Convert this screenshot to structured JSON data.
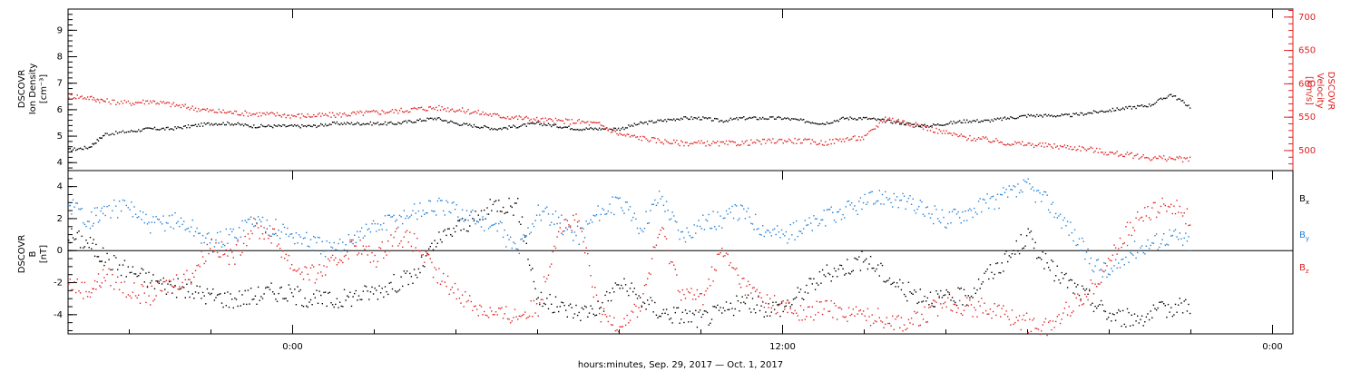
{
  "x_axis": {
    "label": "hours:minutes, Sep. 29, 2017 — Oct.  1, 2017",
    "ticks": [
      {
        "hour": 0,
        "label": "0:00"
      },
      {
        "hour": 12,
        "label": "12:00"
      },
      {
        "hour": 24,
        "label": "0:00"
      }
    ],
    "range_hours": [
      -5.5,
      24.5
    ]
  },
  "colors": {
    "black": "#000000",
    "red": "#e02020",
    "blue": "#1f7fd6"
  },
  "chart_data": [
    {
      "type": "scatter",
      "panel": "top",
      "left_axis": {
        "label_lines": [
          "DSCOVR",
          "Ion Density",
          "[cm⁻³]"
        ],
        "ylim": [
          3.7,
          9.8
        ],
        "ticks": [
          4,
          5,
          6,
          7,
          8,
          9
        ]
      },
      "right_axis": {
        "label_lines": [
          "DSCOVR",
          "Velocity",
          "[km/s]"
        ],
        "ylim": [
          470,
          712
        ],
        "ticks": [
          500,
          550,
          600,
          650,
          700
        ]
      },
      "series": [
        {
          "color": "black",
          "axis": "left",
          "x_hours": [
            -5.5,
            -5.0,
            -4.6,
            -4.0,
            -3.5,
            -3.0,
            -2.5,
            -2.0,
            -1.5,
            -1.0,
            -0.5,
            0.0,
            0.5,
            1.0,
            1.5,
            2.0,
            2.5,
            3.0,
            3.5,
            4.0,
            4.5,
            5.0,
            5.5,
            6.0,
            6.5,
            7.0,
            7.5,
            8.0,
            8.5,
            9.0,
            9.5,
            10.0,
            10.5,
            11.0,
            11.5,
            12.0,
            12.5,
            13.0,
            13.5,
            14.0,
            14.5,
            15.0,
            15.5,
            16.0,
            16.5,
            17.0,
            17.5,
            18.0,
            18.5,
            19.0,
            19.5,
            20.0,
            20.5,
            21.0,
            21.5,
            22.0
          ],
          "y": [
            4.5,
            4.6,
            5.1,
            5.2,
            5.3,
            5.3,
            5.4,
            5.5,
            5.5,
            5.4,
            5.4,
            5.4,
            5.4,
            5.5,
            5.5,
            5.5,
            5.5,
            5.6,
            5.7,
            5.5,
            5.4,
            5.3,
            5.4,
            5.5,
            5.4,
            5.3,
            5.3,
            5.3,
            5.5,
            5.6,
            5.7,
            5.7,
            5.6,
            5.7,
            5.7,
            5.7,
            5.6,
            5.5,
            5.7,
            5.7,
            5.6,
            5.5,
            5.4,
            5.5,
            5.6,
            5.6,
            5.7,
            5.8,
            5.8,
            5.8,
            5.9,
            6.0,
            6.1,
            6.2,
            6.6,
            6.1
          ]
        },
        {
          "color": "red",
          "axis": "right",
          "x_hours": [
            -5.5,
            -5.0,
            -4.6,
            -4.0,
            -3.5,
            -3.0,
            -2.5,
            -2.0,
            -1.5,
            -1.0,
            -0.5,
            0.0,
            0.5,
            1.0,
            1.5,
            2.0,
            2.5,
            3.0,
            3.5,
            4.0,
            4.5,
            5.0,
            5.5,
            6.0,
            6.5,
            7.0,
            7.5,
            8.0,
            8.5,
            9.0,
            9.5,
            10.0,
            10.5,
            11.0,
            11.5,
            12.0,
            12.5,
            13.0,
            13.5,
            14.0,
            14.5,
            15.0,
            15.5,
            16.0,
            16.5,
            17.0,
            17.5,
            18.0,
            18.5,
            19.0,
            19.5,
            20.0,
            20.5,
            21.0,
            21.5,
            22.0
          ],
          "y": [
            583,
            580,
            575,
            572,
            575,
            570,
            565,
            560,
            558,
            556,
            555,
            553,
            553,
            554,
            556,
            558,
            560,
            563,
            565,
            562,
            558,
            553,
            550,
            547,
            545,
            544,
            540,
            525,
            520,
            515,
            512,
            512,
            511,
            512,
            514,
            516,
            515,
            512,
            518,
            520,
            550,
            543,
            535,
            527,
            520,
            517,
            512,
            510,
            508,
            506,
            503,
            497,
            494,
            490,
            489,
            487
          ]
        }
      ]
    },
    {
      "type": "scatter",
      "panel": "bottom",
      "left_axis": {
        "label_lines": [
          "DSCOVR",
          "B",
          "[nT]"
        ],
        "ylim": [
          -5.2,
          5.0
        ],
        "ticks": [
          -4,
          -2,
          0,
          2,
          4
        ]
      },
      "zero_line": true,
      "series": [
        {
          "name": "Bx",
          "color": "black",
          "x_hours": [
            -5.5,
            -5.0,
            -4.6,
            -4.0,
            -3.5,
            -3.0,
            -2.5,
            -2.0,
            -1.5,
            -1.0,
            -0.5,
            0.0,
            0.5,
            1.0,
            1.5,
            2.0,
            2.5,
            3.0,
            3.5,
            4.0,
            4.5,
            5.0,
            5.5,
            6.0,
            6.5,
            7.0,
            7.5,
            8.0,
            8.5,
            9.0,
            9.5,
            10.0,
            10.5,
            11.0,
            11.5,
            12.0,
            12.5,
            13.0,
            13.5,
            14.0,
            14.5,
            15.0,
            15.5,
            16.0,
            16.5,
            17.0,
            17.5,
            18.0,
            18.5,
            19.0,
            19.5,
            20.0,
            20.5,
            21.0,
            21.5,
            22.0
          ],
          "y": [
            1.0,
            0.5,
            -0.5,
            -1.2,
            -1.8,
            -2.2,
            -2.5,
            -2.8,
            -3.0,
            -2.8,
            -2.5,
            -2.7,
            -3.0,
            -3.1,
            -2.8,
            -2.5,
            -2.0,
            -1.5,
            0.5,
            1.5,
            2.0,
            3.0,
            2.8,
            -3.0,
            -3.5,
            -3.8,
            -3.5,
            -2.0,
            -3.0,
            -3.8,
            -4.0,
            -4.2,
            -3.8,
            -3.2,
            -3.5,
            -3.5,
            -2.5,
            -1.5,
            -1.0,
            -0.5,
            -1.5,
            -2.5,
            -2.8,
            -3.0,
            -2.8,
            -1.5,
            -0.5,
            1.0,
            -1.0,
            -2.0,
            -3.0,
            -4.0,
            -4.2,
            -4.0,
            -3.5,
            -3.3
          ]
        },
        {
          "name": "By",
          "color": "blue",
          "x_hours": [
            -5.5,
            -5.0,
            -4.6,
            -4.0,
            -3.5,
            -3.0,
            -2.5,
            -2.0,
            -1.5,
            -1.0,
            -0.5,
            0.0,
            0.5,
            1.0,
            1.5,
            2.0,
            2.5,
            3.0,
            3.5,
            4.0,
            4.5,
            5.0,
            5.5,
            6.0,
            6.5,
            7.0,
            7.5,
            8.0,
            8.5,
            9.0,
            9.5,
            10.0,
            10.5,
            11.0,
            11.5,
            12.0,
            12.5,
            13.0,
            13.5,
            14.0,
            14.5,
            15.0,
            15.5,
            16.0,
            16.5,
            17.0,
            17.5,
            18.0,
            18.5,
            19.0,
            19.5,
            20.0,
            20.5,
            21.0,
            21.5,
            22.0
          ],
          "y": [
            3.0,
            2.0,
            2.5,
            2.8,
            1.5,
            2.0,
            1.5,
            0.5,
            1.0,
            2.0,
            1.5,
            1.0,
            0.5,
            0.0,
            1.0,
            1.5,
            2.0,
            2.5,
            2.8,
            2.5,
            2.0,
            1.5,
            0.0,
            2.5,
            1.8,
            1.0,
            2.5,
            3.0,
            1.5,
            3.5,
            1.0,
            1.8,
            2.0,
            2.5,
            1.5,
            1.0,
            1.5,
            2.0,
            2.5,
            3.0,
            3.5,
            3.0,
            2.5,
            2.0,
            2.5,
            3.0,
            3.5,
            4.0,
            3.0,
            1.5,
            -0.5,
            -1.5,
            0.0,
            0.5,
            1.0,
            0.5
          ]
        },
        {
          "name": "Bz",
          "color": "red",
          "x_hours": [
            -5.5,
            -5.0,
            -4.6,
            -4.0,
            -3.5,
            -3.0,
            -2.5,
            -2.0,
            -1.5,
            -1.0,
            -0.5,
            0.0,
            0.5,
            1.0,
            1.5,
            2.0,
            2.5,
            3.0,
            3.5,
            4.0,
            4.5,
            5.0,
            5.5,
            6.0,
            6.5,
            7.0,
            7.5,
            8.0,
            8.5,
            9.0,
            9.5,
            10.0,
            10.5,
            11.0,
            11.5,
            12.0,
            12.5,
            13.0,
            13.5,
            14.0,
            14.5,
            15.0,
            15.5,
            16.0,
            16.5,
            17.0,
            17.5,
            18.0,
            18.5,
            19.0,
            19.5,
            20.0,
            20.5,
            21.0,
            21.5,
            22.0
          ],
          "y": [
            -2.0,
            -2.5,
            -1.5,
            -2.5,
            -2.8,
            -2.0,
            -1.5,
            0.5,
            -0.5,
            1.5,
            1.0,
            -1.0,
            -1.5,
            -0.8,
            0.5,
            -0.5,
            1.0,
            0.5,
            -1.5,
            -2.5,
            -3.5,
            -4.0,
            -4.0,
            -3.5,
            1.5,
            1.8,
            -4.0,
            -4.5,
            -3.5,
            1.5,
            -2.5,
            -3.0,
            0.0,
            -2.0,
            -3.0,
            -3.5,
            -4.0,
            -3.5,
            -3.8,
            -4.0,
            -4.2,
            -4.5,
            -4.0,
            -3.0,
            -3.5,
            -3.5,
            -4.0,
            -4.5,
            -4.8,
            -3.5,
            -2.5,
            -0.5,
            1.5,
            2.5,
            3.0,
            2.0
          ]
        }
      ],
      "legend": {
        "placement": "right",
        "entries": [
          {
            "base": "B",
            "sub": "x",
            "color": "black"
          },
          {
            "base": "B",
            "sub": "y",
            "color": "blue"
          },
          {
            "base": "B",
            "sub": "z",
            "color": "red"
          }
        ]
      }
    }
  ]
}
